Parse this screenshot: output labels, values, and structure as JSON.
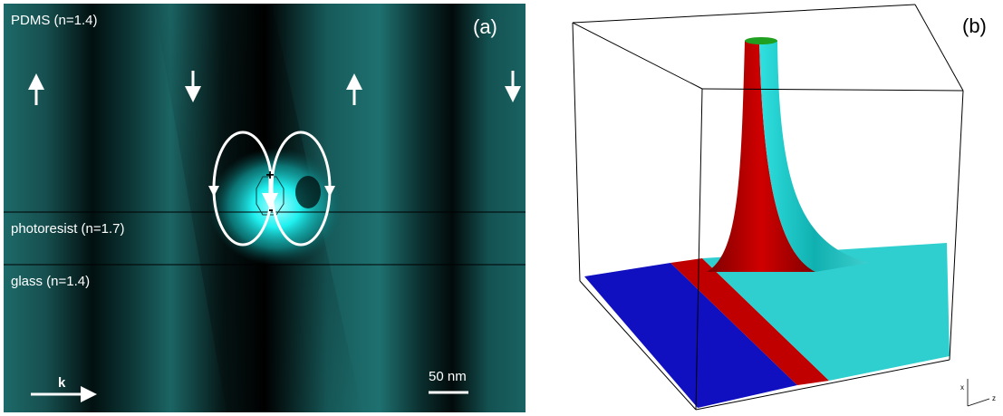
{
  "panel_a": {
    "label": "(a)",
    "layers": [
      "PDMS (n=1.4)",
      "photoresist (n=1.7)",
      "glass (n=1.4)"
    ],
    "dipole_plus": "+",
    "dipole_minus": "-",
    "wave_vector": "k",
    "scale_bar": "50 nm"
  },
  "panel_b": {
    "label": "(b)",
    "axis_x": "x",
    "axis_z": "z"
  }
}
